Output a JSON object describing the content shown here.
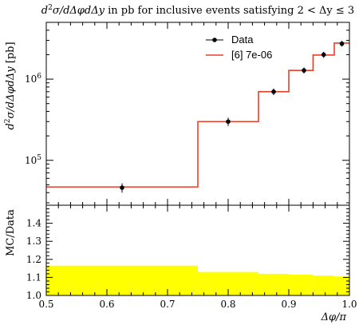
{
  "chart_data": [
    {
      "type": "line",
      "panel": "main",
      "title": "d²σ/dΔφdΔy in pb for inclusive events satisfying 2 < Δy ≤ 3",
      "ylabel": "d²σ/dΔφdΔy [pb]",
      "yscale": "log",
      "ylim": [
        28000,
        5000000
      ],
      "xlim": [
        0.5,
        1.0
      ],
      "ytick_labels": [
        {
          "value": 100000,
          "base": "10",
          "exp": "5"
        },
        {
          "value": 1000000,
          "base": "10",
          "exp": "6"
        }
      ],
      "legend_position": "top-right",
      "series": [
        {
          "name": "Data",
          "style": "points",
          "color": "#000000",
          "x": [
            0.625,
            0.8,
            0.875,
            0.925,
            0.9575,
            0.9875
          ],
          "y": [
            46000,
            300000,
            700000,
            1280000,
            2000000,
            2730000
          ],
          "yerr": [
            6000,
            35000,
            65000,
            110000,
            170000,
            220000
          ]
        },
        {
          "name": "[6] 7e-06",
          "style": "step",
          "color": "#e8412a",
          "bins": [
            {
              "x0": 0.5,
              "x1": 0.75,
              "y": 47000
            },
            {
              "x0": 0.75,
              "x1": 0.85,
              "y": 300000
            },
            {
              "x0": 0.85,
              "x1": 0.9,
              "y": 700000
            },
            {
              "x0": 0.9,
              "x1": 0.94,
              "y": 1280000
            },
            {
              "x0": 0.94,
              "x1": 0.975,
              "y": 1980000
            },
            {
              "x0": 0.975,
              "x1": 1.0,
              "y": 2780000
            }
          ]
        }
      ]
    },
    {
      "type": "area",
      "panel": "ratio",
      "ylabel": "MC/Data",
      "xlabel": "Δφ/π",
      "xlim": [
        0.5,
        1.0
      ],
      "ylim": [
        1.0,
        1.5
      ],
      "x_ticks": [
        0.5,
        0.6,
        0.7,
        0.8,
        0.9,
        1.0
      ],
      "x_tick_labels": [
        "0.5",
        "0.6",
        "0.7",
        "0.8",
        "0.9",
        "1.0"
      ],
      "y_ticks": [
        1.0,
        1.1,
        1.2,
        1.3,
        1.4
      ],
      "y_tick_labels": [
        "1.0",
        "1.1",
        "1.2",
        "1.3",
        "1.4"
      ],
      "band_color": "#ffff00",
      "band": [
        {
          "x0": 0.5,
          "x1": 0.75,
          "y_low": 1.0,
          "y_high": 1.165
        },
        {
          "x0": 0.75,
          "x1": 0.85,
          "y_low": 1.0,
          "y_high": 1.13
        },
        {
          "x0": 0.85,
          "x1": 0.9,
          "y_low": 1.0,
          "y_high": 1.12
        },
        {
          "x0": 0.9,
          "x1": 0.94,
          "y_low": 1.0,
          "y_high": 1.115
        },
        {
          "x0": 0.94,
          "x1": 0.975,
          "y_low": 1.0,
          "y_high": 1.11
        },
        {
          "x0": 0.975,
          "x1": 1.0,
          "y_low": 1.0,
          "y_high": 1.105
        }
      ]
    }
  ]
}
